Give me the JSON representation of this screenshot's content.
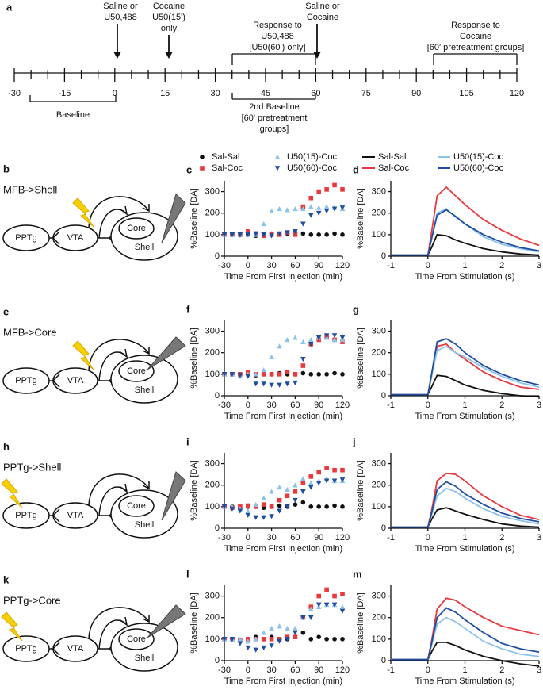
{
  "timeline": {
    "label": "a",
    "ticks": [
      -30,
      -15,
      0,
      15,
      30,
      45,
      60,
      75,
      90,
      105,
      120
    ],
    "above": [
      [
        "Saline or",
        "U50,488"
      ],
      [
        "Cocaine",
        "U50(15')",
        "only"
      ],
      [
        "Response to",
        "U50,488",
        "[U50(60') only]"
      ],
      [
        "Saline or",
        "Cocaine"
      ],
      [
        "Response to",
        "Cocaine",
        "[60' pretreatment groups]"
      ]
    ],
    "below": [
      [
        "Baseline"
      ],
      [
        "2nd Baseline",
        "[60' pretreatment",
        "groups]"
      ]
    ]
  },
  "diagrams": [
    {
      "label": "b",
      "title": "MFB->Shell",
      "nodes": [
        "PPTg",
        "VTA",
        "Core",
        "Shell"
      ]
    },
    {
      "label": "e",
      "title": "MFB->Core",
      "nodes": [
        "PPTg",
        "VTA",
        "Core",
        "Shell"
      ]
    },
    {
      "label": "h",
      "title": "PPTg->Shell",
      "nodes": [
        "PPTg",
        "VTA",
        "Core",
        "Shell"
      ]
    },
    {
      "label": "k",
      "title": "PPTg->Core",
      "nodes": [
        "PPTg",
        "VTA",
        "Core",
        "Shell"
      ]
    }
  ],
  "chart_data": [
    {
      "type": "scatter",
      "label": "c",
      "legend": "top",
      "xlabel": "Time From First Injection (min)",
      "ylabel": "%Baseline [DA]",
      "xlim": [
        -30,
        120
      ],
      "xticks": [
        -30,
        0,
        30,
        60,
        90,
        120
      ],
      "ylim": [
        0,
        350
      ],
      "yticks": [
        0,
        100,
        200,
        300
      ],
      "x": [
        -30,
        -20,
        -10,
        0,
        10,
        20,
        30,
        40,
        50,
        60,
        70,
        80,
        90,
        100,
        110,
        120
      ],
      "series": [
        {
          "name": "Sal-Sal",
          "color": "#111111",
          "marker": "circle",
          "values": [
            100,
            100,
            98,
            100,
            95,
            100,
            105,
            100,
            105,
            110,
            105,
            100,
            100,
            100,
            105,
            100
          ]
        },
        {
          "name": "Sal-Coc",
          "color": "#e8393f",
          "marker": "square",
          "values": [
            100,
            100,
            100,
            115,
            105,
            95,
            100,
            100,
            110,
            100,
            230,
            270,
            300,
            310,
            330,
            310
          ]
        },
        {
          "name": "U50(15)-Coc",
          "color": "#8ec3e8",
          "marker": "triangle-up",
          "values": [
            100,
            100,
            100,
            100,
            100,
            150,
            210,
            220,
            215,
            220,
            220,
            230,
            225,
            230,
            225,
            220
          ]
        },
        {
          "name": "U50(60)-Coc",
          "color": "#1f4ea1",
          "marker": "triangle-down",
          "values": [
            100,
            100,
            100,
            100,
            105,
            100,
            95,
            105,
            110,
            115,
            150,
            190,
            200,
            210,
            220,
            225
          ]
        }
      ]
    },
    {
      "type": "line",
      "label": "d",
      "legend": "top",
      "xlabel": "Time From Stimulation (s)",
      "ylabel": "%Baseline [DA]",
      "xlim": [
        -1,
        3
      ],
      "xticks": [
        -1,
        0,
        1,
        2,
        3
      ],
      "ylim": [
        0,
        350
      ],
      "yticks": [
        0,
        100,
        200,
        300
      ],
      "x": [
        -1,
        -0.5,
        0,
        0.1,
        0.25,
        0.5,
        0.75,
        1,
        1.5,
        2,
        2.5,
        3
      ],
      "series": [
        {
          "name": "Sal-Sal",
          "color": "#111111",
          "values": [
            5,
            5,
            5,
            40,
            100,
            95,
            75,
            60,
            35,
            20,
            10,
            5
          ]
        },
        {
          "name": "Sal-Coc",
          "color": "#e8393f",
          "values": [
            5,
            5,
            5,
            110,
            280,
            320,
            280,
            240,
            170,
            120,
            80,
            50
          ]
        },
        {
          "name": "U50(15)-Coc",
          "color": "#8ec3e8",
          "values": [
            5,
            5,
            5,
            80,
            200,
            220,
            180,
            150,
            90,
            55,
            35,
            20
          ]
        },
        {
          "name": "U50(60)-Coc",
          "color": "#1f4ea1",
          "values": [
            5,
            5,
            5,
            80,
            190,
            215,
            185,
            150,
            100,
            65,
            40,
            25
          ]
        }
      ]
    },
    {
      "type": "scatter",
      "label": "f",
      "xlabel": "Time From First Injection (min)",
      "ylabel": "%Baseline [DA]",
      "xlim": [
        -30,
        120
      ],
      "xticks": [
        -30,
        0,
        30,
        60,
        90,
        120
      ],
      "ylim": [
        0,
        350
      ],
      "yticks": [
        0,
        100,
        200,
        300
      ],
      "x": [
        -30,
        -20,
        -10,
        0,
        10,
        20,
        30,
        40,
        50,
        60,
        70,
        80,
        90,
        100,
        110,
        120
      ],
      "series": [
        {
          "name": "Sal-Sal",
          "color": "#111111",
          "marker": "circle",
          "values": [
            100,
            100,
            100,
            100,
            95,
            100,
            100,
            105,
            100,
            100,
            105,
            100,
            100,
            100,
            105,
            100
          ]
        },
        {
          "name": "Sal-Coc",
          "color": "#e8393f",
          "marker": "square",
          "values": [
            100,
            100,
            100,
            110,
            100,
            100,
            100,
            100,
            110,
            100,
            140,
            240,
            260,
            270,
            260,
            250
          ]
        },
        {
          "name": "U50(15)-Coc",
          "color": "#8ec3e8",
          "marker": "triangle-up",
          "values": [
            100,
            100,
            90,
            100,
            100,
            120,
            180,
            230,
            260,
            270,
            250,
            260,
            270,
            270,
            260,
            260
          ]
        },
        {
          "name": "U50(60)-Coc",
          "color": "#1f4ea1",
          "marker": "triangle-down",
          "values": [
            100,
            100,
            95,
            90,
            55,
            55,
            50,
            50,
            55,
            60,
            170,
            240,
            270,
            280,
            280,
            270
          ]
        }
      ]
    },
    {
      "type": "line",
      "label": "g",
      "xlabel": "Time From Stimulation (s)",
      "ylabel": "%Baseline [DA]",
      "xlim": [
        -1,
        3
      ],
      "xticks": [
        -1,
        0,
        1,
        2,
        3
      ],
      "ylim": [
        0,
        350
      ],
      "yticks": [
        0,
        100,
        200,
        300
      ],
      "x": [
        -1,
        -0.5,
        0,
        0.1,
        0.25,
        0.5,
        0.75,
        1,
        1.5,
        2,
        2.5,
        3
      ],
      "series": [
        {
          "name": "Sal-Sal",
          "color": "#111111",
          "values": [
            5,
            5,
            5,
            40,
            95,
            90,
            70,
            50,
            25,
            10,
            0,
            -5
          ]
        },
        {
          "name": "Sal-Coc",
          "color": "#e8393f",
          "values": [
            5,
            5,
            5,
            90,
            230,
            240,
            200,
            170,
            110,
            70,
            40,
            30
          ]
        },
        {
          "name": "U50(15)-Coc",
          "color": "#8ec3e8",
          "values": [
            5,
            5,
            5,
            90,
            210,
            230,
            200,
            180,
            130,
            90,
            60,
            40
          ]
        },
        {
          "name": "U50(60)-Coc",
          "color": "#1f4ea1",
          "values": [
            5,
            5,
            5,
            100,
            250,
            265,
            240,
            200,
            140,
            100,
            70,
            50
          ]
        }
      ]
    },
    {
      "type": "scatter",
      "label": "i",
      "xlabel": "Time From First Injection (min)",
      "ylabel": "%Baseline [DA]",
      "xlim": [
        -30,
        120
      ],
      "xticks": [
        -30,
        0,
        30,
        60,
        90,
        120
      ],
      "ylim": [
        0,
        350
      ],
      "yticks": [
        0,
        100,
        200,
        300
      ],
      "x": [
        -30,
        -20,
        -10,
        0,
        10,
        20,
        30,
        40,
        50,
        60,
        70,
        80,
        90,
        100,
        110,
        120
      ],
      "series": [
        {
          "name": "Sal-Sal",
          "color": "#111111",
          "marker": "circle",
          "values": [
            100,
            100,
            95,
            100,
            100,
            95,
            100,
            105,
            100,
            110,
            120,
            100,
            100,
            100,
            105,
            100
          ]
        },
        {
          "name": "Sal-Coc",
          "color": "#e8393f",
          "marker": "square",
          "values": [
            100,
            95,
            100,
            105,
            100,
            110,
            100,
            130,
            150,
            170,
            210,
            240,
            260,
            280,
            270,
            270
          ]
        },
        {
          "name": "U50(15)-Coc",
          "color": "#8ec3e8",
          "marker": "triangle-up",
          "values": [
            100,
            100,
            90,
            80,
            110,
            140,
            170,
            190,
            180,
            200,
            230,
            210,
            220,
            230,
            220,
            220
          ]
        },
        {
          "name": "U50(60)-Coc",
          "color": "#1f4ea1",
          "marker": "triangle-down",
          "values": [
            100,
            90,
            80,
            60,
            50,
            50,
            55,
            80,
            100,
            130,
            170,
            190,
            210,
            220,
            220,
            225
          ]
        }
      ]
    },
    {
      "type": "line",
      "label": "j",
      "xlabel": "Time From Stimulation (s)",
      "ylabel": "%Baseline [DA]",
      "xlim": [
        -1,
        3
      ],
      "xticks": [
        -1,
        0,
        1,
        2,
        3
      ],
      "ylim": [
        0,
        350
      ],
      "yticks": [
        0,
        100,
        200,
        300
      ],
      "x": [
        -1,
        -0.5,
        0,
        0.1,
        0.25,
        0.5,
        0.75,
        1,
        1.5,
        2,
        2.5,
        3
      ],
      "series": [
        {
          "name": "Sal-Sal",
          "color": "#111111",
          "values": [
            5,
            5,
            5,
            40,
            85,
            95,
            80,
            65,
            40,
            20,
            10,
            5
          ]
        },
        {
          "name": "Sal-Coc",
          "color": "#e8393f",
          "values": [
            5,
            5,
            5,
            80,
            220,
            255,
            250,
            220,
            150,
            100,
            60,
            40
          ]
        },
        {
          "name": "U50(15)-Coc",
          "color": "#8ec3e8",
          "values": [
            5,
            5,
            5,
            60,
            150,
            185,
            170,
            140,
            90,
            55,
            35,
            20
          ]
        },
        {
          "name": "U50(60)-Coc",
          "color": "#1f4ea1",
          "values": [
            5,
            5,
            5,
            70,
            180,
            215,
            195,
            160,
            110,
            70,
            45,
            30
          ]
        }
      ]
    },
    {
      "type": "scatter",
      "label": "l",
      "xlabel": "Time From First Injection (min)",
      "ylabel": "%Baseline [DA]",
      "xlim": [
        -30,
        120
      ],
      "xticks": [
        -30,
        0,
        30,
        60,
        90,
        120
      ],
      "ylim": [
        0,
        350
      ],
      "yticks": [
        0,
        100,
        200,
        300
      ],
      "x": [
        -30,
        -20,
        -10,
        0,
        10,
        20,
        30,
        40,
        50,
        60,
        70,
        80,
        90,
        100,
        110,
        120
      ],
      "series": [
        {
          "name": "Sal-Sal",
          "color": "#111111",
          "marker": "circle",
          "values": [
            100,
            100,
            95,
            100,
            110,
            100,
            110,
            100,
            100,
            110,
            130,
            100,
            110,
            100,
            100,
            100
          ]
        },
        {
          "name": "Sal-Coc",
          "color": "#e8393f",
          "marker": "square",
          "values": [
            100,
            100,
            95,
            100,
            100,
            100,
            100,
            100,
            110,
            110,
            200,
            250,
            300,
            330,
            300,
            310
          ]
        },
        {
          "name": "U50(15)-Coc",
          "color": "#8ec3e8",
          "marker": "triangle-up",
          "values": [
            100,
            100,
            100,
            90,
            100,
            130,
            150,
            160,
            150,
            150,
            200,
            240,
            250,
            260,
            260,
            250
          ]
        },
        {
          "name": "U50(60)-Coc",
          "color": "#1f4ea1",
          "marker": "triangle-down",
          "values": [
            100,
            100,
            80,
            60,
            50,
            60,
            70,
            90,
            100,
            130,
            200,
            200,
            260,
            260,
            260,
            230
          ]
        }
      ]
    },
    {
      "type": "line",
      "label": "m",
      "xlabel": "Time From Stimulation (s)",
      "ylabel": "%Baseline [DA]",
      "xlim": [
        -1,
        3
      ],
      "xticks": [
        -1,
        0,
        1,
        2,
        3
      ],
      "ylim": [
        0,
        350
      ],
      "yticks": [
        0,
        100,
        200,
        300
      ],
      "x": [
        -1,
        -0.5,
        0,
        0.1,
        0.25,
        0.5,
        0.75,
        1,
        1.5,
        2,
        2.5,
        3
      ],
      "series": [
        {
          "name": "Sal-Sal",
          "color": "#111111",
          "values": [
            5,
            5,
            5,
            40,
            85,
            85,
            70,
            50,
            20,
            0,
            -15,
            -25
          ]
        },
        {
          "name": "Sal-Coc",
          "color": "#e8393f",
          "values": [
            5,
            5,
            5,
            90,
            240,
            290,
            280,
            250,
            200,
            160,
            140,
            120
          ]
        },
        {
          "name": "U50(15)-Coc",
          "color": "#8ec3e8",
          "values": [
            5,
            5,
            5,
            70,
            170,
            200,
            180,
            150,
            90,
            55,
            30,
            20
          ]
        },
        {
          "name": "U50(60)-Coc",
          "color": "#1f4ea1",
          "values": [
            5,
            5,
            5,
            80,
            200,
            245,
            225,
            190,
            130,
            80,
            55,
            40
          ]
        }
      ]
    }
  ]
}
